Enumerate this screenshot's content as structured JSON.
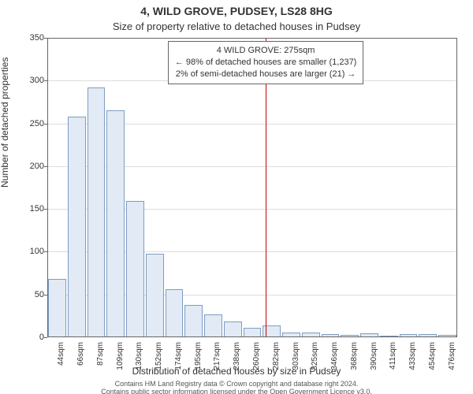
{
  "title_main": "4, WILD GROVE, PUDSEY, LS28 8HG",
  "title_sub": "Size of property relative to detached houses in Pudsey",
  "y_axis_label": "Number of detached properties",
  "x_axis_label": "Distribution of detached houses by size in Pudsey",
  "footer_line1": "Contains HM Land Registry data © Crown copyright and database right 2024.",
  "footer_line2": "Contains public sector information licensed under the Open Government Licence v3.0.",
  "chart": {
    "type": "histogram",
    "background_color": "#ffffff",
    "grid_color": "#dddddd",
    "axis_color": "#666666",
    "bar_fill": "#e1eaf5",
    "bar_border": "#7f9cc2",
    "marker_color": "#cc0000",
    "ylim": [
      0,
      350
    ],
    "yticks": [
      0,
      50,
      100,
      150,
      200,
      250,
      300,
      350
    ],
    "x_categories": [
      "44sqm",
      "66sqm",
      "87sqm",
      "109sqm",
      "130sqm",
      "152sqm",
      "174sqm",
      "195sqm",
      "217sqm",
      "238sqm",
      "260sqm",
      "282sqm",
      "303sqm",
      "325sqm",
      "346sqm",
      "368sqm",
      "390sqm",
      "411sqm",
      "433sqm",
      "454sqm",
      "476sqm"
    ],
    "values": [
      68,
      258,
      292,
      265,
      159,
      98,
      56,
      38,
      27,
      18,
      11,
      14,
      6,
      6,
      4,
      3,
      5,
      2,
      4,
      4,
      3
    ],
    "bar_width_ratio": 0.92,
    "marker_position_index": 10.7,
    "title_fontsize": 14,
    "subtitle_fontsize": 13,
    "axis_label_fontsize": 12,
    "tick_fontsize": 11,
    "xtick_fontsize": 10,
    "annotation_fontsize": 11
  },
  "annotation": {
    "line1": "4 WILD GROVE: 275sqm",
    "line2": "← 98% of detached houses are smaller (1,237)",
    "line3": "2% of semi-detached houses are larger (21) →"
  }
}
